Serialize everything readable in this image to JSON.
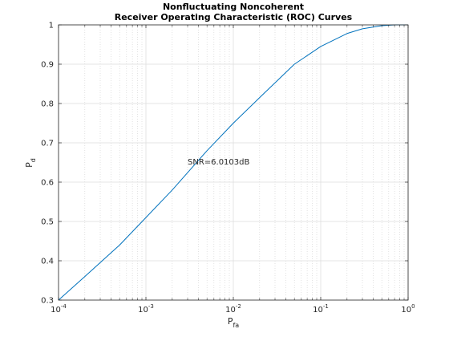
{
  "chart_data": {
    "type": "line",
    "title_lines": [
      "Nonfluctuating Noncoherent",
      "Receiver Operating Characteristic (ROC) Curves"
    ],
    "xlabel": {
      "main": "P",
      "sub": "fa"
    },
    "ylabel": {
      "main": "P",
      "sub": "d"
    },
    "x_scale": "log",
    "xlim": [
      0.0001,
      1
    ],
    "ylim": [
      0.3,
      1
    ],
    "x_ticks": [
      {
        "base": "10",
        "exp": "-4"
      },
      {
        "base": "10",
        "exp": "-3"
      },
      {
        "base": "10",
        "exp": "-2"
      },
      {
        "base": "10",
        "exp": "-1"
      },
      {
        "base": "10",
        "exp": "0"
      }
    ],
    "y_ticks": [
      "0.3",
      "0.4",
      "0.5",
      "0.6",
      "0.7",
      "0.8",
      "0.9",
      "1"
    ],
    "grid": true,
    "minor_grid": true,
    "annotation": {
      "text": "SNR=6.0103dB",
      "x": 0.003,
      "y": 0.645
    },
    "series": [
      {
        "color": "#0072bd",
        "x": [
          0.0001,
          0.0002,
          0.0005,
          0.001,
          0.002,
          0.005,
          0.01,
          0.02,
          0.05,
          0.1,
          0.2,
          0.3,
          0.5,
          0.7,
          1
        ],
        "y": [
          0.3,
          0.36,
          0.44,
          0.51,
          0.58,
          0.68,
          0.75,
          0.815,
          0.9,
          0.945,
          0.978,
          0.99,
          0.998,
          1.0,
          1.0
        ]
      }
    ]
  }
}
